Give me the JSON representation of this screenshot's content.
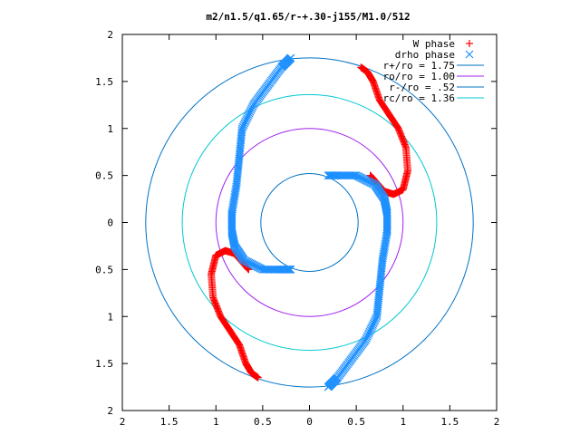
{
  "chart_data": {
    "type": "scatter",
    "title": "m2/n1.5/q1.65/r-+.30-j155/M1.0/512",
    "xlim": [
      -2,
      2
    ],
    "ylim": [
      -2,
      2
    ],
    "x_ticks": [
      -2,
      -1.5,
      -1,
      -0.5,
      0,
      0.5,
      1,
      1.5,
      2
    ],
    "y_ticks": [
      -2,
      -1.5,
      -1,
      -0.5,
      0,
      0.5,
      1,
      1.5,
      2
    ],
    "x_tick_labels": [
      "2",
      "1.5",
      "1",
      "0.5",
      "0",
      "0.5",
      "1",
      "1.5",
      "2"
    ],
    "y_tick_labels": [
      "2",
      "1.5",
      "1",
      "0.5",
      "0",
      "0.5",
      "1",
      "1.5",
      "2"
    ],
    "grid": false,
    "legend_position": "top-right",
    "circles": [
      {
        "name": "r+/ro = 1.75",
        "radius": 1.75,
        "color": "#0072c6"
      },
      {
        "name": "ro/ro = 1.00",
        "radius": 1.0,
        "color": "#a020f0"
      },
      {
        "name": "r-/ro = .52",
        "radius": 0.52,
        "color": "#0072c6"
      },
      {
        "name": "rc/ro = 1.36",
        "radius": 1.36,
        "color": "#00c8d2"
      }
    ],
    "series": [
      {
        "name": "W phase",
        "marker": "+",
        "color": "#ff0000",
        "arms": [
          [
            [
              0.55,
              1.65
            ],
            [
              0.62,
              1.6
            ],
            [
              0.68,
              1.5
            ],
            [
              0.75,
              1.3
            ],
            [
              0.85,
              1.15
            ],
            [
              0.95,
              1.0
            ],
            [
              1.03,
              0.8
            ],
            [
              1.05,
              0.55
            ],
            [
              1.0,
              0.35
            ],
            [
              0.9,
              0.3
            ],
            [
              0.8,
              0.33
            ],
            [
              0.72,
              0.42
            ],
            [
              0.65,
              0.5
            ]
          ],
          [
            [
              -0.55,
              -1.65
            ],
            [
              -0.62,
              -1.6
            ],
            [
              -0.68,
              -1.5
            ],
            [
              -0.75,
              -1.3
            ],
            [
              -0.85,
              -1.15
            ],
            [
              -0.95,
              -1.0
            ],
            [
              -1.03,
              -0.8
            ],
            [
              -1.05,
              -0.55
            ],
            [
              -1.0,
              -0.35
            ],
            [
              -0.9,
              -0.3
            ],
            [
              -0.8,
              -0.33
            ],
            [
              -0.72,
              -0.42
            ],
            [
              -0.65,
              -0.5
            ]
          ]
        ]
      },
      {
        "name": "drho phase",
        "marker": "x",
        "color": "#1e90ff",
        "arms": [
          [
            [
              -0.2,
              1.75
            ],
            [
              -0.3,
              1.65
            ],
            [
              -0.45,
              1.45
            ],
            [
              -0.6,
              1.25
            ],
            [
              -0.72,
              1.0
            ],
            [
              -0.75,
              0.7
            ],
            [
              -0.78,
              0.4
            ],
            [
              -0.83,
              0.1
            ],
            [
              -0.83,
              -0.1
            ],
            [
              -0.8,
              -0.25
            ],
            [
              -0.7,
              -0.4
            ],
            [
              -0.5,
              -0.5
            ],
            [
              -0.3,
              -0.5
            ],
            [
              -0.2,
              -0.5
            ]
          ],
          [
            [
              0.2,
              -1.75
            ],
            [
              0.3,
              -1.65
            ],
            [
              0.45,
              -1.45
            ],
            [
              0.6,
              -1.25
            ],
            [
              0.72,
              -1.0
            ],
            [
              0.75,
              -0.7
            ],
            [
              0.78,
              -0.4
            ],
            [
              0.83,
              -0.1
            ],
            [
              0.83,
              0.1
            ],
            [
              0.8,
              0.25
            ],
            [
              0.7,
              0.4
            ],
            [
              0.5,
              0.5
            ],
            [
              0.3,
              0.5
            ],
            [
              0.2,
              0.5
            ]
          ]
        ]
      }
    ]
  }
}
